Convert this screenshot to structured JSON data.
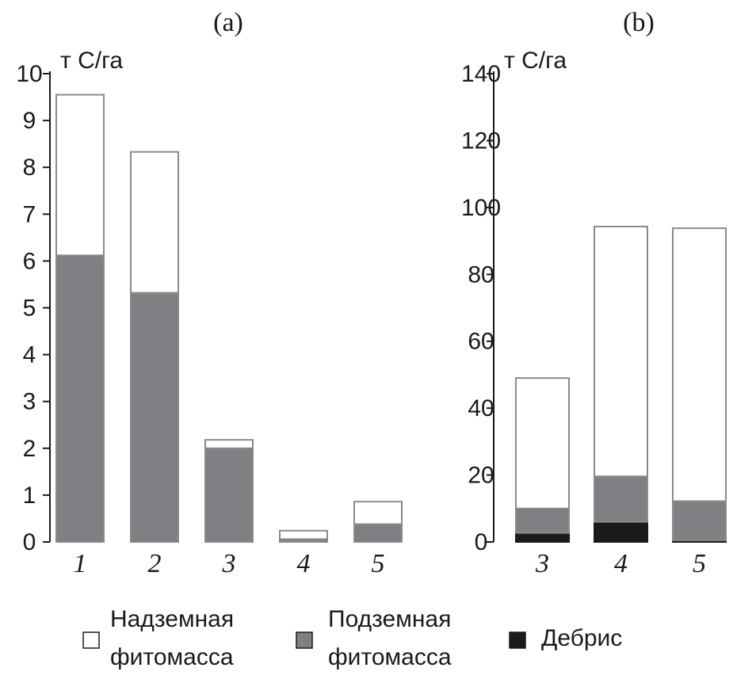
{
  "chart_data": [
    {
      "type": "bar",
      "stacked": true,
      "title": "(a)",
      "ylabel": "т С/га",
      "categories": [
        "1",
        "2",
        "3",
        "4",
        "5"
      ],
      "ylim": [
        0,
        10
      ],
      "yticks": [
        0,
        1,
        2,
        3,
        4,
        5,
        6,
        7,
        8,
        9,
        10
      ],
      "series": [
        {
          "name": "Дебрис",
          "key": "debris",
          "values": [
            0,
            0,
            0,
            0,
            0
          ]
        },
        {
          "name": "Подземная фитомасса",
          "key": "below",
          "values": [
            6.12,
            5.32,
            2.0,
            0.06,
            0.38
          ]
        },
        {
          "name": "Надземная фитомасса",
          "key": "above",
          "values": [
            3.43,
            3.01,
            0.18,
            0.18,
            0.48
          ]
        }
      ]
    },
    {
      "type": "bar",
      "stacked": true,
      "title": "(b)",
      "ylabel": "т С/га",
      "categories": [
        "3",
        "4",
        "5"
      ],
      "ylim": [
        0,
        140
      ],
      "yticks": [
        0,
        20,
        40,
        60,
        80,
        100,
        120,
        140
      ],
      "series": [
        {
          "name": "Дебрис",
          "key": "debris",
          "values": [
            2.7,
            6.0,
            0.5
          ]
        },
        {
          "name": "Подземная фитомасса",
          "key": "below",
          "values": [
            7.3,
            13.6,
            11.7
          ]
        },
        {
          "name": "Надземная фитомасса",
          "key": "above",
          "values": [
            39.0,
            74.7,
            81.6
          ]
        }
      ]
    }
  ],
  "legend": [
    {
      "key": "above",
      "line1": "Надземная",
      "line2": "фитомасса"
    },
    {
      "key": "below",
      "line1": "Подземная",
      "line2": "фитомасса"
    },
    {
      "key": "debris",
      "line1": "Дебрис",
      "line2": ""
    }
  ],
  "colors": {
    "above": "#ffffff",
    "below": "#808084",
    "debris": "#1a1a1a",
    "outline": "#8a8a8a",
    "axis": "#1a1a1a"
  }
}
